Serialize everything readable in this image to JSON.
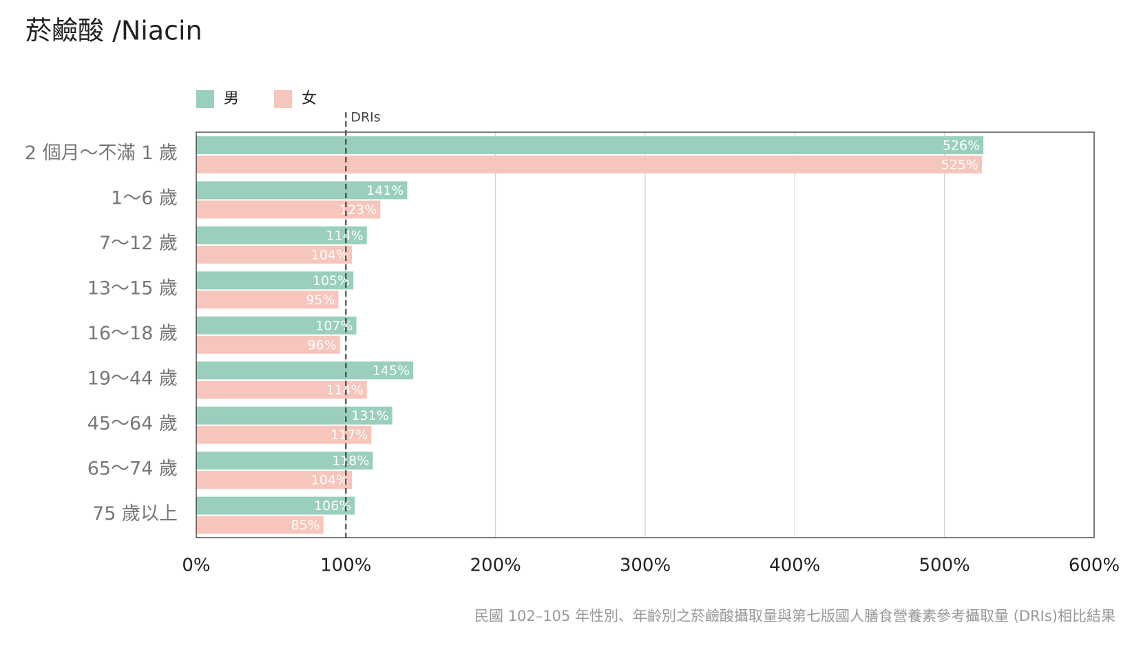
{
  "chart_data": {
    "type": "hbar",
    "title": "菸鹼酸 /Niacin",
    "note": "民國 102–105 年性別、年齡別之菸鹼酸攝取量與第七版國人膳食營養素參考攝取量 (DRIs)相比結果",
    "categories": [
      "2 個月～不滿 1 歲",
      "1～6 歲",
      "7～12 歲",
      "13～15 歲",
      "16～18 歲",
      "19～44 歲",
      "45～64 歲",
      "65～74 歲",
      "75 歲以上"
    ],
    "series": [
      {
        "name": "男",
        "color": "#99cfbc",
        "values": [
          526,
          141,
          114,
          105,
          107,
          145,
          131,
          118,
          106
        ],
        "value_labels": [
          "526%",
          "141%",
          "114%",
          "105%",
          "107%",
          "145%",
          "131%",
          "118%",
          "106%"
        ]
      },
      {
        "name": "女",
        "color": "#f6c5bb",
        "values": [
          525,
          123,
          104,
          95,
          96,
          114,
          117,
          104,
          85
        ],
        "value_labels": [
          "525%",
          "123%",
          "104%",
          "95%",
          "96%",
          "114%",
          "117%",
          "104%",
          "85%"
        ]
      }
    ],
    "xlim": [
      0,
      600
    ],
    "xticks": [
      {
        "value": 0,
        "label": "0%"
      },
      {
        "value": 100,
        "label": "100%"
      },
      {
        "value": 200,
        "label": "200%"
      },
      {
        "value": 300,
        "label": "300%"
      },
      {
        "value": 400,
        "label": "400%"
      },
      {
        "value": 500,
        "label": "500%"
      },
      {
        "value": 600,
        "label": "600%"
      }
    ],
    "grid": true,
    "reference": {
      "value": 100,
      "label": "DRIs"
    }
  }
}
